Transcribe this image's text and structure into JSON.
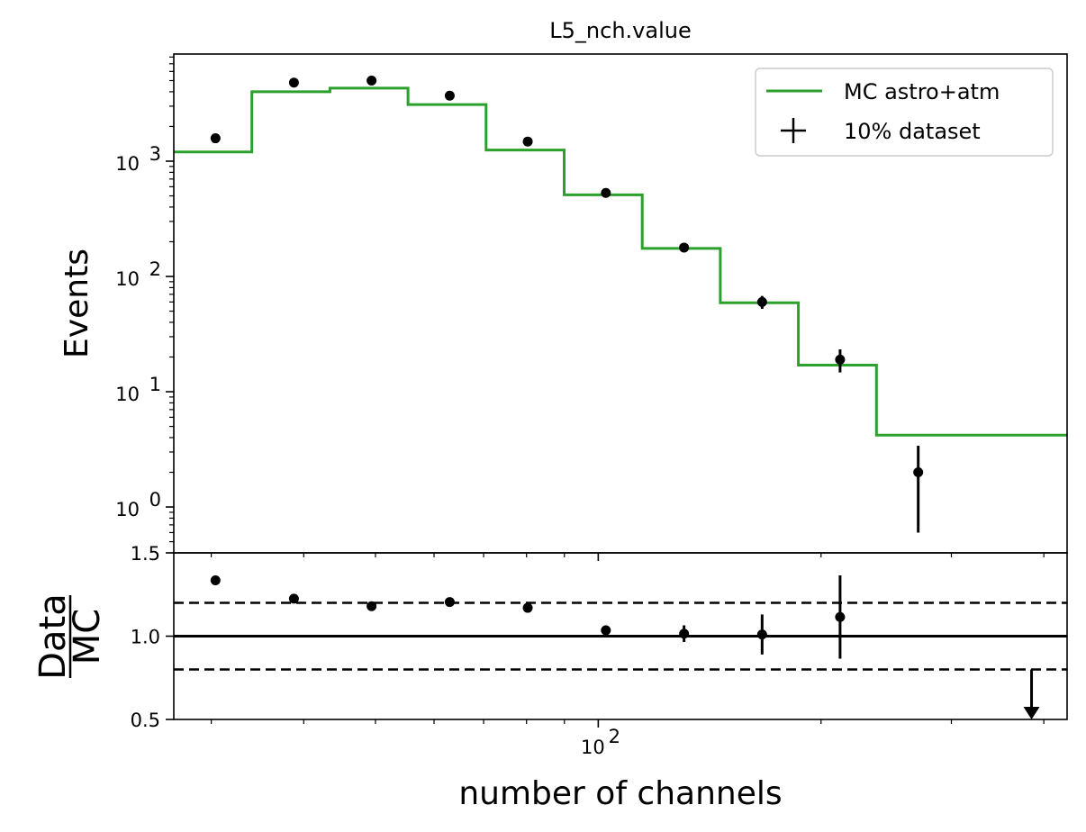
{
  "chart_data": {
    "type": "line",
    "title": "L5_nch.value",
    "xlabel": "number of channels",
    "x_scale": "log",
    "xlim": [
      26.7,
      430
    ],
    "x_ticks": [
      {
        "value": 100,
        "base": "10",
        "exp": "2"
      }
    ],
    "bin_edges": [
      26.7,
      34.04,
      43.4,
      55.33,
      70.55,
      89.94,
      114.67,
      146.2,
      186.4,
      237.65,
      303.0,
      430.0
    ],
    "bin_centers": [
      30.4,
      38.8,
      49.4,
      63.0,
      80.3,
      102.4,
      130.6,
      166.5,
      212.2,
      270.6,
      385.0
    ],
    "legend": {
      "placement": "top-right",
      "entries": [
        {
          "label": "MC astro+atm",
          "color": "#2ca02c",
          "kind": "line"
        },
        {
          "label": "10% dataset",
          "color": "#000000",
          "kind": "errorbar"
        }
      ]
    },
    "main_panel": {
      "ylabel": "Events",
      "y_scale": "log",
      "ylim": [
        0.4,
        8500
      ],
      "y_ticks": [
        {
          "value": 1,
          "base": "10",
          "exp": "0"
        },
        {
          "value": 10,
          "base": "10",
          "exp": "1"
        },
        {
          "value": 100,
          "base": "10",
          "exp": "2"
        },
        {
          "value": 1000,
          "base": "10",
          "exp": "3"
        }
      ],
      "series": [
        {
          "name": "MC astro+atm",
          "kind": "step",
          "color": "#2ca02c",
          "values": [
            1200,
            4000,
            4300,
            3100,
            1250,
            510,
            175,
            59,
            17,
            4.2,
            4.2
          ]
        },
        {
          "name": "10% dataset",
          "kind": "errorbar",
          "color": "#000000",
          "values": [
            1580,
            4800,
            5000,
            3700,
            1480,
            530,
            178,
            60,
            19,
            2
          ],
          "err_low": [
            40,
            70,
            71,
            61,
            38,
            23,
            13,
            7.7,
            4.3,
            1.4
          ],
          "err_high": [
            40,
            70,
            71,
            61,
            38,
            23,
            13,
            7.7,
            4.3,
            1.4
          ]
        }
      ]
    },
    "ratio_panel": {
      "ylabel_numerator": "Data",
      "ylabel_denominator": "MC",
      "ylim": [
        0.5,
        1.5
      ],
      "y_ticks": [
        0.5,
        1.0,
        1.5
      ],
      "y_tick_labels": [
        "0.5",
        "1.0",
        "1.5"
      ],
      "reference_lines": [
        {
          "value": 1.0,
          "style": "solid"
        },
        {
          "value": 1.2,
          "style": "dashed"
        },
        {
          "value": 0.8,
          "style": "dashed"
        }
      ],
      "points": {
        "values": [
          1.335,
          1.225,
          1.18,
          1.205,
          1.17,
          1.035,
          1.015,
          1.01,
          1.115
        ],
        "err_low": [
          0.02,
          0.015,
          0.015,
          0.015,
          0.02,
          0.03,
          0.05,
          0.12,
          0.25
        ],
        "err_high": [
          0.02,
          0.015,
          0.015,
          0.015,
          0.02,
          0.03,
          0.05,
          0.12,
          0.25
        ]
      },
      "upper_limit": {
        "value": 0.8
      }
    }
  }
}
